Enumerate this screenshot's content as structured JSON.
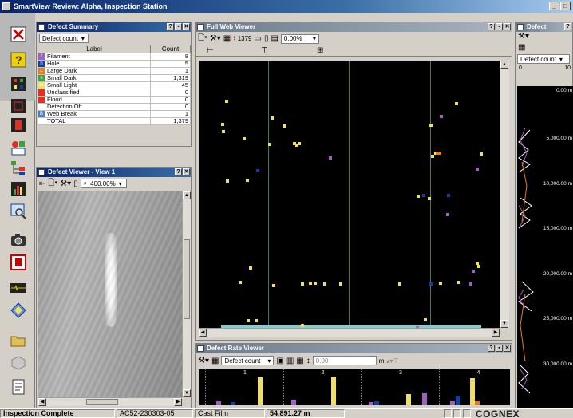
{
  "window": {
    "title": "SmartView Review: Alpha, Inspection Station",
    "buttons": [
      "_",
      "□"
    ]
  },
  "left_toolbar": {
    "tools": [
      "red-x-icon",
      "help-icon",
      "grid-icon",
      "chart-icon",
      "layout-icon",
      "tree-icon",
      "bar-chart-icon",
      "zoom-icon",
      "camera-icon",
      "record-icon",
      "waveform-icon",
      "diamond-icon",
      "open-folder-icon",
      "cube-icon",
      "document-icon"
    ]
  },
  "defect_summary": {
    "title": "Defect Summary",
    "combo": "Defect count",
    "col_label": "Label",
    "col_count": "Count",
    "rows": [
      {
        "code": "f",
        "label": "Filament",
        "count": "8",
        "color": "#a060c0"
      },
      {
        "code": "h",
        "label": "Hole",
        "count": "5",
        "color": "#1040a0"
      },
      {
        "code": "L",
        "label": "Large Dark",
        "count": "1",
        "color": "#e08020"
      },
      {
        "code": "k",
        "label": "Small Dark",
        "count": "1,319",
        "color": "#40a040"
      },
      {
        "code": "m",
        "label": "Small Light",
        "count": "45",
        "color": "#f0e060"
      },
      {
        "code": "",
        "label": "Unclassified",
        "count": "0",
        "color": "#e03020"
      },
      {
        "code": "",
        "label": "Flood",
        "count": "0",
        "color": "#e03020"
      },
      {
        "code": "-",
        "label": "Detection Off",
        "count": "0",
        "color": "#ffffff"
      },
      {
        "code": "B",
        "label": "Web Break",
        "count": "1",
        "color": "#5080c0"
      },
      {
        "code": "",
        "label": "TOTAL",
        "count": "1,379",
        "color": "#ffffff"
      }
    ]
  },
  "defect_viewer": {
    "title": "Defect Viewer - View 1",
    "zoom": "400.00%"
  },
  "full_web_viewer": {
    "title": "Full Web Viewer",
    "count": "1379",
    "percent": "0.00%"
  },
  "defect_rate_viewer": {
    "title": "Defect Rate Viewer",
    "combo": "Defect count",
    "value": "0.00",
    "unit": "m",
    "lanes": [
      "1",
      "2",
      "3",
      "4"
    ]
  },
  "defect_trend": {
    "title": "Defect",
    "combo": "Defect count",
    "scale_min": "0",
    "scale_max": "10",
    "ticks": [
      "0.00 m",
      "5,000.00 m",
      "10,000.00 m",
      "15,000.00 m",
      "20,000.00 m",
      "25,000.00 m",
      "30,000.00 m"
    ]
  },
  "status_bar": {
    "status": "Inspection Complete",
    "roll_id": "AC52-230303-05",
    "product": "Cast Film",
    "length": "54,891.27 m",
    "brand": "COGNEX"
  }
}
